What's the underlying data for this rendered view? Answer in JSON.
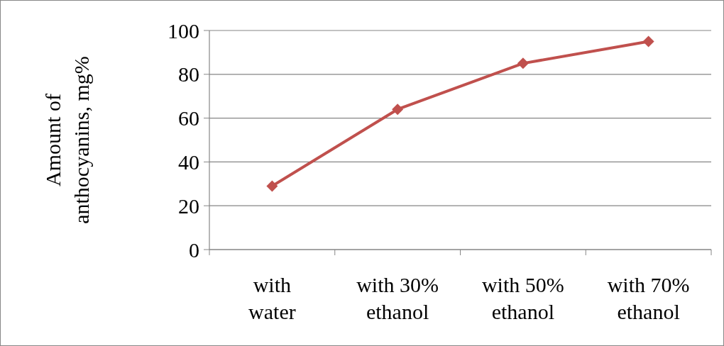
{
  "chart_data": {
    "type": "line",
    "ylabel": "Amount of anthocyanins, mg%",
    "categories": [
      "with water",
      "with 30% ethanol",
      "with 50% ethanol",
      "with 70% ethanol"
    ],
    "series": [
      {
        "color": "#c0504d",
        "values": [
          29,
          64,
          85,
          95
        ]
      }
    ],
    "ylim": [
      0,
      100
    ],
    "yticks": [
      0,
      20,
      40,
      60,
      80,
      100
    ],
    "grid": "y",
    "marker": "diamond",
    "line_style": "solid"
  }
}
